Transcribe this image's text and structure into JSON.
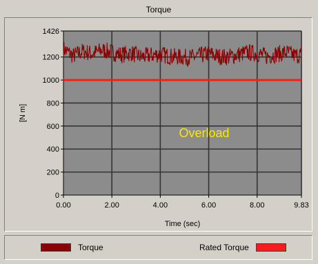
{
  "chart_data": {
    "type": "line",
    "title": "Torque",
    "xlabel": "Time (sec)",
    "ylabel": "[N m]",
    "xlim": [
      0,
      9.83
    ],
    "ylim": [
      0,
      1426
    ],
    "x_ticks": [
      "0.00",
      "2.00",
      "4.00",
      "6.00",
      "8.00",
      "9.83"
    ],
    "y_ticks": [
      "0",
      "200",
      "400",
      "600",
      "800",
      "1000",
      "1200",
      "1426"
    ],
    "x_tick_values": [
      0,
      2,
      4,
      6,
      8,
      9.83
    ],
    "y_tick_values": [
      0,
      200,
      400,
      600,
      800,
      1000,
      1200,
      1426
    ],
    "series": [
      {
        "name": "Torque",
        "color": "#8b0000",
        "x": [
          0.0,
          0.4,
          0.8,
          1.2,
          1.6,
          2.0,
          2.4,
          2.8,
          3.2,
          3.6,
          4.0,
          4.4,
          4.8,
          5.2,
          5.6,
          6.0,
          6.4,
          6.8,
          7.2,
          7.6,
          8.0,
          8.4,
          8.8,
          9.2,
          9.6,
          9.83
        ],
        "values": [
          1270,
          1210,
          1250,
          1230,
          1260,
          1240,
          1220,
          1235,
          1200,
          1215,
          1225,
          1205,
          1200,
          1195,
          1210,
          1230,
          1205,
          1200,
          1220,
          1240,
          1230,
          1205,
          1225,
          1240,
          1210,
          1225
        ]
      },
      {
        "name": "Rated Torque",
        "color": "#ff1a1a",
        "x": [
          0,
          9.83
        ],
        "values": [
          1000,
          1000
        ]
      }
    ],
    "annotations": [
      {
        "text": "Overload",
        "color": "#ffe600"
      }
    ],
    "grid": true,
    "legend_position": "bottom"
  }
}
